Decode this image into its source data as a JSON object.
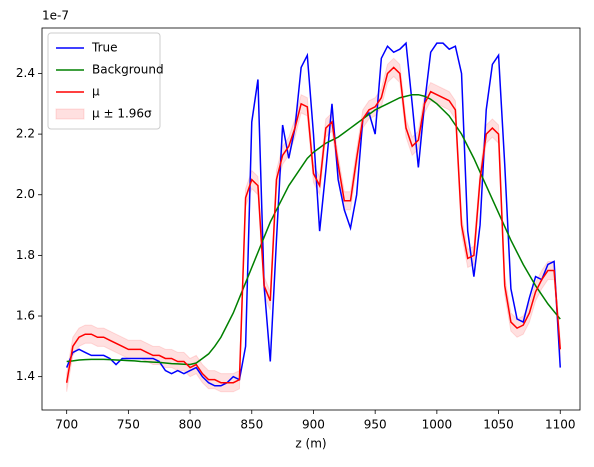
{
  "chart_data": {
    "type": "line",
    "x_label": "z (m)",
    "y_offset_label": "1e-7",
    "x": [
      700,
      705,
      710,
      715,
      720,
      725,
      730,
      735,
      740,
      745,
      750,
      755,
      760,
      765,
      770,
      775,
      780,
      785,
      790,
      795,
      800,
      805,
      810,
      815,
      820,
      825,
      830,
      835,
      840,
      845,
      850,
      855,
      860,
      865,
      870,
      875,
      880,
      885,
      890,
      895,
      900,
      905,
      910,
      915,
      920,
      925,
      930,
      935,
      940,
      945,
      950,
      955,
      960,
      965,
      970,
      975,
      980,
      985,
      990,
      995,
      1000,
      1005,
      1010,
      1015,
      1020,
      1025,
      1030,
      1035,
      1040,
      1045,
      1050,
      1055,
      1060,
      1065,
      1070,
      1075,
      1080,
      1085,
      1090,
      1095,
      1100
    ],
    "series": [
      {
        "name": "True",
        "color": "#0000ff",
        "values": [
          1.43,
          1.48,
          1.49,
          1.48,
          1.47,
          1.47,
          1.47,
          1.46,
          1.44,
          1.46,
          1.46,
          1.46,
          1.46,
          1.46,
          1.46,
          1.45,
          1.42,
          1.41,
          1.42,
          1.41,
          1.42,
          1.43,
          1.4,
          1.38,
          1.37,
          1.37,
          1.38,
          1.4,
          1.39,
          1.5,
          2.24,
          2.38,
          1.7,
          1.45,
          1.85,
          2.23,
          2.12,
          2.22,
          2.42,
          2.46,
          2.2,
          1.88,
          2.08,
          2.3,
          2.05,
          1.95,
          1.89,
          2.0,
          2.25,
          2.27,
          2.2,
          2.45,
          2.49,
          2.47,
          2.48,
          2.5,
          2.3,
          2.09,
          2.3,
          2.47,
          2.5,
          2.5,
          2.48,
          2.49,
          2.4,
          1.88,
          1.73,
          1.9,
          2.28,
          2.43,
          2.46,
          2.1,
          1.69,
          1.59,
          1.58,
          1.66,
          1.73,
          1.72,
          1.77,
          1.78,
          1.43
        ]
      },
      {
        "name": "Background",
        "color": "#008000",
        "values": [
          1.45,
          1.452,
          1.455,
          1.456,
          1.457,
          1.457,
          1.457,
          1.456,
          1.455,
          1.454,
          1.453,
          1.452,
          1.45,
          1.449,
          1.448,
          1.447,
          1.445,
          1.443,
          1.442,
          1.441,
          1.44,
          1.445,
          1.46,
          1.475,
          1.5,
          1.53,
          1.57,
          1.61,
          1.66,
          1.71,
          1.76,
          1.81,
          1.86,
          1.91,
          1.95,
          1.99,
          2.03,
          2.06,
          2.09,
          2.12,
          2.14,
          2.155,
          2.17,
          2.18,
          2.19,
          2.205,
          2.22,
          2.235,
          2.25,
          2.265,
          2.28,
          2.29,
          2.3,
          2.31,
          2.32,
          2.325,
          2.33,
          2.33,
          2.325,
          2.315,
          2.3,
          2.28,
          2.26,
          2.23,
          2.2,
          2.16,
          2.12,
          2.075,
          2.03,
          1.985,
          1.94,
          1.895,
          1.85,
          1.81,
          1.77,
          1.735,
          1.7,
          1.67,
          1.64,
          1.615,
          1.59
        ]
      },
      {
        "name": "μ",
        "color": "#ff0000",
        "values": [
          1.38,
          1.5,
          1.53,
          1.54,
          1.54,
          1.53,
          1.53,
          1.52,
          1.51,
          1.5,
          1.49,
          1.49,
          1.49,
          1.48,
          1.47,
          1.47,
          1.46,
          1.46,
          1.45,
          1.45,
          1.43,
          1.44,
          1.41,
          1.39,
          1.39,
          1.38,
          1.38,
          1.38,
          1.39,
          1.99,
          2.05,
          2.03,
          1.7,
          1.65,
          2.05,
          2.13,
          2.16,
          2.22,
          2.3,
          2.29,
          2.07,
          2.03,
          2.22,
          2.24,
          2.1,
          1.98,
          1.98,
          2.12,
          2.25,
          2.28,
          2.29,
          2.32,
          2.4,
          2.42,
          2.4,
          2.22,
          2.16,
          2.18,
          2.3,
          2.34,
          2.33,
          2.32,
          2.31,
          2.28,
          1.9,
          1.79,
          1.8,
          2.05,
          2.2,
          2.22,
          2.2,
          1.7,
          1.58,
          1.56,
          1.57,
          1.61,
          1.68,
          1.72,
          1.75,
          1.75,
          1.49
        ]
      }
    ],
    "band": {
      "name": "μ ± 1.96σ",
      "color": "#ff0000",
      "lower": [
        1.35,
        1.47,
        1.5,
        1.51,
        1.51,
        1.5,
        1.5,
        1.49,
        1.48,
        1.47,
        1.46,
        1.46,
        1.46,
        1.45,
        1.44,
        1.44,
        1.43,
        1.43,
        1.42,
        1.42,
        1.4,
        1.41,
        1.38,
        1.36,
        1.36,
        1.35,
        1.35,
        1.35,
        1.36,
        1.96,
        2.02,
        2.0,
        1.67,
        1.62,
        2.02,
        2.1,
        2.13,
        2.19,
        2.27,
        2.26,
        2.04,
        2.0,
        2.19,
        2.21,
        2.07,
        1.95,
        1.95,
        2.09,
        2.22,
        2.25,
        2.26,
        2.29,
        2.37,
        2.39,
        2.37,
        2.19,
        2.13,
        2.15,
        2.27,
        2.31,
        2.3,
        2.29,
        2.28,
        2.25,
        1.87,
        1.76,
        1.77,
        2.02,
        2.17,
        2.19,
        2.17,
        1.67,
        1.55,
        1.53,
        1.54,
        1.58,
        1.65,
        1.69,
        1.72,
        1.72,
        1.46
      ],
      "upper": [
        1.41,
        1.53,
        1.56,
        1.57,
        1.57,
        1.56,
        1.56,
        1.55,
        1.54,
        1.53,
        1.52,
        1.52,
        1.52,
        1.51,
        1.5,
        1.5,
        1.49,
        1.49,
        1.48,
        1.48,
        1.46,
        1.47,
        1.44,
        1.42,
        1.42,
        1.41,
        1.41,
        1.41,
        1.42,
        2.02,
        2.08,
        2.06,
        1.73,
        1.68,
        2.08,
        2.16,
        2.19,
        2.25,
        2.33,
        2.32,
        2.1,
        2.06,
        2.25,
        2.27,
        2.13,
        2.01,
        2.01,
        2.15,
        2.28,
        2.31,
        2.32,
        2.35,
        2.43,
        2.45,
        2.43,
        2.25,
        2.19,
        2.21,
        2.33,
        2.37,
        2.36,
        2.35,
        2.34,
        2.31,
        1.93,
        1.82,
        1.83,
        2.08,
        2.23,
        2.25,
        2.23,
        1.73,
        1.61,
        1.59,
        1.6,
        1.64,
        1.71,
        1.75,
        1.78,
        1.78,
        1.52
      ]
    },
    "xlim": [
      680,
      1116
    ],
    "ylim": [
      1.29,
      2.55
    ],
    "xticks": [
      700,
      750,
      800,
      850,
      900,
      950,
      1000,
      1050,
      1100
    ],
    "yticks": [
      1.4,
      1.6,
      1.8,
      {
        "value": 2,
        "label": "2.0"
      },
      2.2,
      2.4
    ],
    "legend": "upper left"
  }
}
